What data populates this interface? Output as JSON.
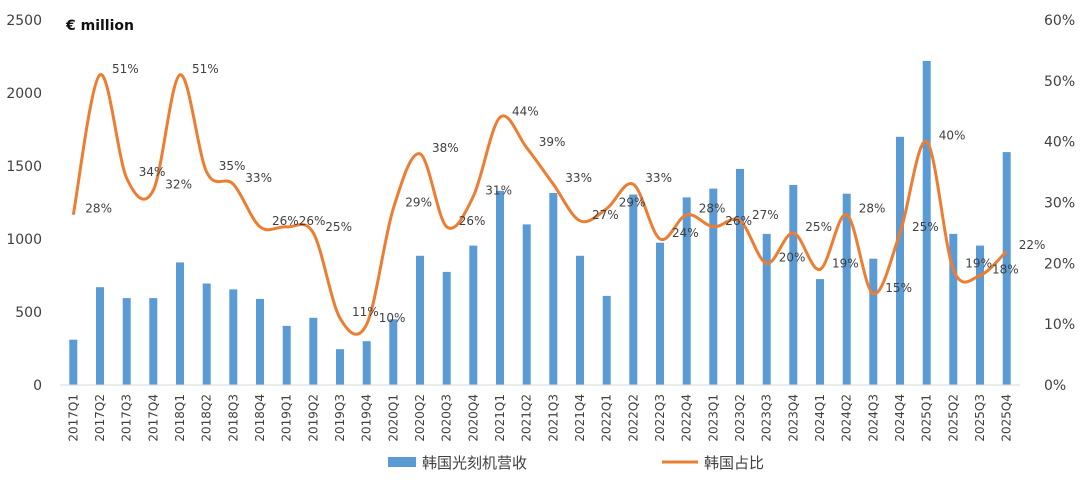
{
  "chart_data": {
    "type": "bar+line",
    "unit_label": "€ million",
    "categories": [
      "2017Q1",
      "2017Q2",
      "2017Q3",
      "2017Q4",
      "2018Q1",
      "2018Q2",
      "2018Q3",
      "2018Q4",
      "2019Q1",
      "2019Q2",
      "2019Q3",
      "2019Q4",
      "2020Q1",
      "2020Q2",
      "2020Q3",
      "2020Q4",
      "2021Q1",
      "2021Q2",
      "2021Q3",
      "2021Q4",
      "2022Q1",
      "2022Q2",
      "2022Q3",
      "2022Q4",
      "2023Q1",
      "2023Q2",
      "2023Q3",
      "2023Q4",
      "2024Q1",
      "2024Q2",
      "2024Q3",
      "2024Q4",
      "2025Q1",
      "2025Q2",
      "2025Q3",
      "2025Q4"
    ],
    "series": [
      {
        "name": "韩国光刻机营收",
        "kind": "bar",
        "axis": "left",
        "color": "#5B9BD5",
        "values": [
          310,
          670,
          595,
          595,
          840,
          695,
          655,
          590,
          405,
          460,
          245,
          300,
          450,
          885,
          775,
          955,
          1330,
          1100,
          1315,
          885,
          610,
          1305,
          975,
          1285,
          1345,
          1480,
          1035,
          1370,
          725,
          1310,
          865,
          1700,
          2220,
          1035,
          955,
          1595
        ]
      },
      {
        "name": "韩国占比",
        "kind": "line",
        "axis": "right",
        "color": "#ED7D31",
        "values": [
          28,
          51,
          34,
          32,
          51,
          35,
          33,
          26,
          26,
          25,
          11,
          10,
          29,
          38,
          26,
          31,
          44,
          39,
          33,
          27,
          29,
          33,
          24,
          28,
          26,
          27,
          20,
          25,
          19,
          28,
          15,
          25,
          40,
          19,
          18,
          22
        ],
        "labels": [
          "28%",
          "51%",
          "34%",
          "32%",
          "51%",
          "35%",
          "33%",
          "26%",
          "26%",
          "25%",
          "11%",
          "10%",
          "29%",
          "38%",
          "26%",
          "31%",
          "44%",
          "39%",
          "33%",
          "27%",
          "29%",
          "33%",
          "24%",
          "28%",
          "26%",
          "27%",
          "20%",
          "25%",
          "19%",
          "28%",
          "15%",
          "25%",
          "40%",
          "19%",
          "18%",
          "22%"
        ]
      }
    ],
    "y_left": {
      "min": 0,
      "max": 2500,
      "ticks": [
        "0",
        "500",
        "1000",
        "1500",
        "2000",
        "2500"
      ]
    },
    "y_right": {
      "min": 0,
      "max": 60,
      "ticks": [
        "0%",
        "10%",
        "20%",
        "30%",
        "40%",
        "50%",
        "60%"
      ]
    },
    "legend_position": "bottom",
    "grid": false
  }
}
